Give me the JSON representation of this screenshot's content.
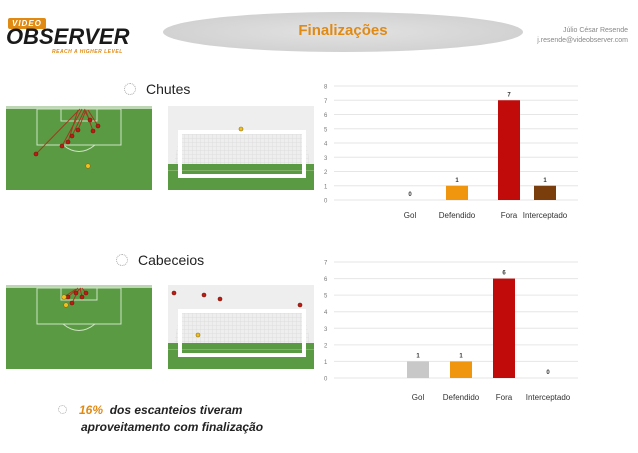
{
  "header": {
    "logo_brand": "OBSERVER",
    "logo_prefix": "VIDEO",
    "logo_tagline": "REACH A HIGHER LEVEL",
    "title": "Finalizações",
    "author_name": "Júlio César Resende",
    "author_email": "j.resende@videobserver.com"
  },
  "sections": [
    {
      "label": "Chutes"
    },
    {
      "label": "Cabeceios"
    }
  ],
  "footer": {
    "highlight": "16%",
    "line1": "dos escanteios tiveram",
    "line2": "aproveitamento com finalização"
  },
  "colors": {
    "accent": "#e08a14",
    "field": "#5a9a42",
    "bar_gol": "#c8c8c8",
    "bar_defendido": "#f0950e",
    "bar_fora": "#c10a0a",
    "bar_interceptado": "#7a3e0c"
  },
  "chart_data": [
    {
      "type": "bar",
      "categories": [
        "Gol",
        "Defendido",
        "Fora",
        "Interceptado"
      ],
      "values": [
        0,
        1,
        7,
        1
      ],
      "ylim": [
        0,
        8
      ],
      "yticks": [
        0,
        1,
        2,
        3,
        4,
        5,
        6,
        7,
        8
      ],
      "colors": [
        "#c8c8c8",
        "#f0950e",
        "#c10a0a",
        "#7a3e0c"
      ],
      "grid": true
    },
    {
      "type": "bar",
      "categories": [
        "Gol",
        "Defendido",
        "Fora",
        "Interceptado"
      ],
      "values": [
        1,
        1,
        6,
        0
      ],
      "ylim": [
        0,
        7
      ],
      "yticks": [
        0,
        1,
        2,
        3,
        4,
        5,
        6,
        7
      ],
      "colors": [
        "#c8c8c8",
        "#f0950e",
        "#c10a0a",
        "#7a3e0c"
      ],
      "grid": true
    }
  ]
}
